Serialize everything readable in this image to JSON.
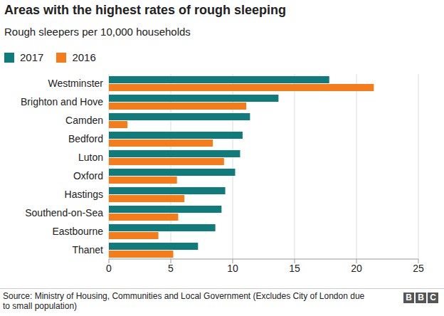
{
  "chart_data": {
    "type": "bar",
    "orientation": "horizontal",
    "title": "Areas with the highest rates of rough sleeping",
    "subtitle": "Rough sleepers per 10,000 households",
    "categories": [
      "Westminster",
      "Brighton and Hove",
      "Camden",
      "Bedford",
      "Luton",
      "Oxford",
      "Hastings",
      "Southend-on-Sea",
      "Eastbourne",
      "Thanet"
    ],
    "series": [
      {
        "name": "2017",
        "color": "#0f7b7b",
        "values": [
          17.8,
          13.7,
          11.4,
          10.8,
          10.6,
          10.2,
          9.4,
          9.1,
          8.6,
          7.2
        ]
      },
      {
        "name": "2016",
        "color": "#f57c1a",
        "values": [
          21.4,
          11.1,
          1.5,
          8.4,
          9.3,
          5.5,
          6.1,
          5.6,
          4.0,
          5.2
        ]
      }
    ],
    "xlim": [
      0,
      25
    ],
    "xticks": [
      0,
      5,
      10,
      15,
      20,
      25
    ],
    "grid": true,
    "legend": "top-left",
    "source": "Source: Ministry of Housing, Communities and Local Government (Excludes City of London due to small population)",
    "logo": "BBC"
  }
}
